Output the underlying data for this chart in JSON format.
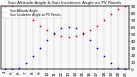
{
  "title": "Sun Altitude Angle & Sun Incidence Angle on PV Panels",
  "legend_blue": "Sun Altitude Angle",
  "legend_red": "Sun Incidence Angle on PV Panels",
  "ylim": [
    0,
    90
  ],
  "yticks_right": [
    0,
    10,
    20,
    30,
    40,
    50,
    60,
    70,
    80,
    90
  ],
  "background_color": "#f8f8f8",
  "grid_color": "#bbbbbb",
  "blue_color": "#0000bb",
  "red_color": "#cc0000",
  "hours": [
    4,
    5,
    6,
    7,
    8,
    9,
    10,
    11,
    12,
    13,
    14,
    15,
    16,
    17,
    18,
    19,
    20,
    21
  ],
  "altitude": [
    0,
    0,
    2,
    8,
    18,
    30,
    42,
    52,
    58,
    60,
    58,
    52,
    42,
    30,
    18,
    8,
    2,
    0
  ],
  "incidence": [
    90,
    90,
    85,
    78,
    70,
    62,
    55,
    50,
    47,
    46,
    47,
    50,
    55,
    62,
    70,
    78,
    85,
    90
  ],
  "dot_size": 1.5,
  "title_fontsize": 3.0,
  "tick_fontsize": 3.0,
  "legend_fontsize": 2.2
}
